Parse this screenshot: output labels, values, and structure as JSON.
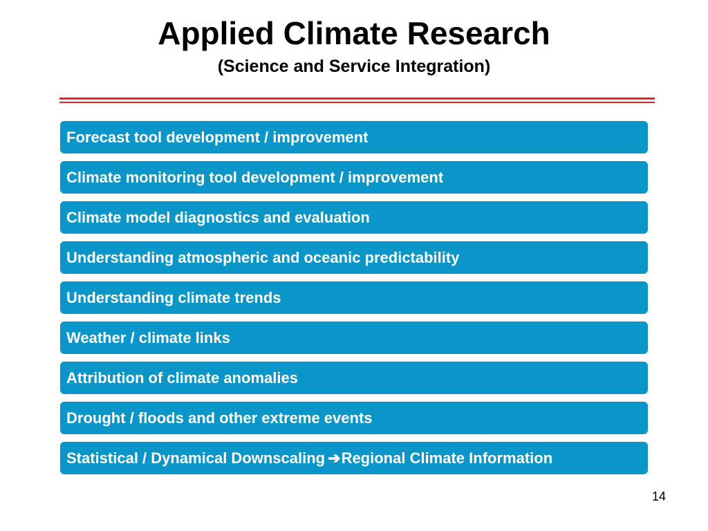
{
  "slide": {
    "title": "Applied Climate Research",
    "subtitle": "(Science and Service Integration)",
    "page_number": "14",
    "colors": {
      "accent_line": "#e8262a",
      "item_background": "#0b96c9",
      "item_text": "#ffffff"
    }
  },
  "items": [
    {
      "label": "Forecast tool development / improvement"
    },
    {
      "label": "Climate monitoring tool development / improvement"
    },
    {
      "label": "Climate model diagnostics and evaluation"
    },
    {
      "label": "Understanding atmospheric and oceanic predictability"
    },
    {
      "label": "Understanding climate trends"
    },
    {
      "label": "Weather / climate links"
    },
    {
      "label": "Attribution of climate anomalies"
    },
    {
      "label": "Drought / floods and other extreme events"
    },
    {
      "label_before": "Statistical / Dynamical Downscaling",
      "arrow_glyph": "➔",
      "label_after": "Regional Climate Information"
    }
  ]
}
